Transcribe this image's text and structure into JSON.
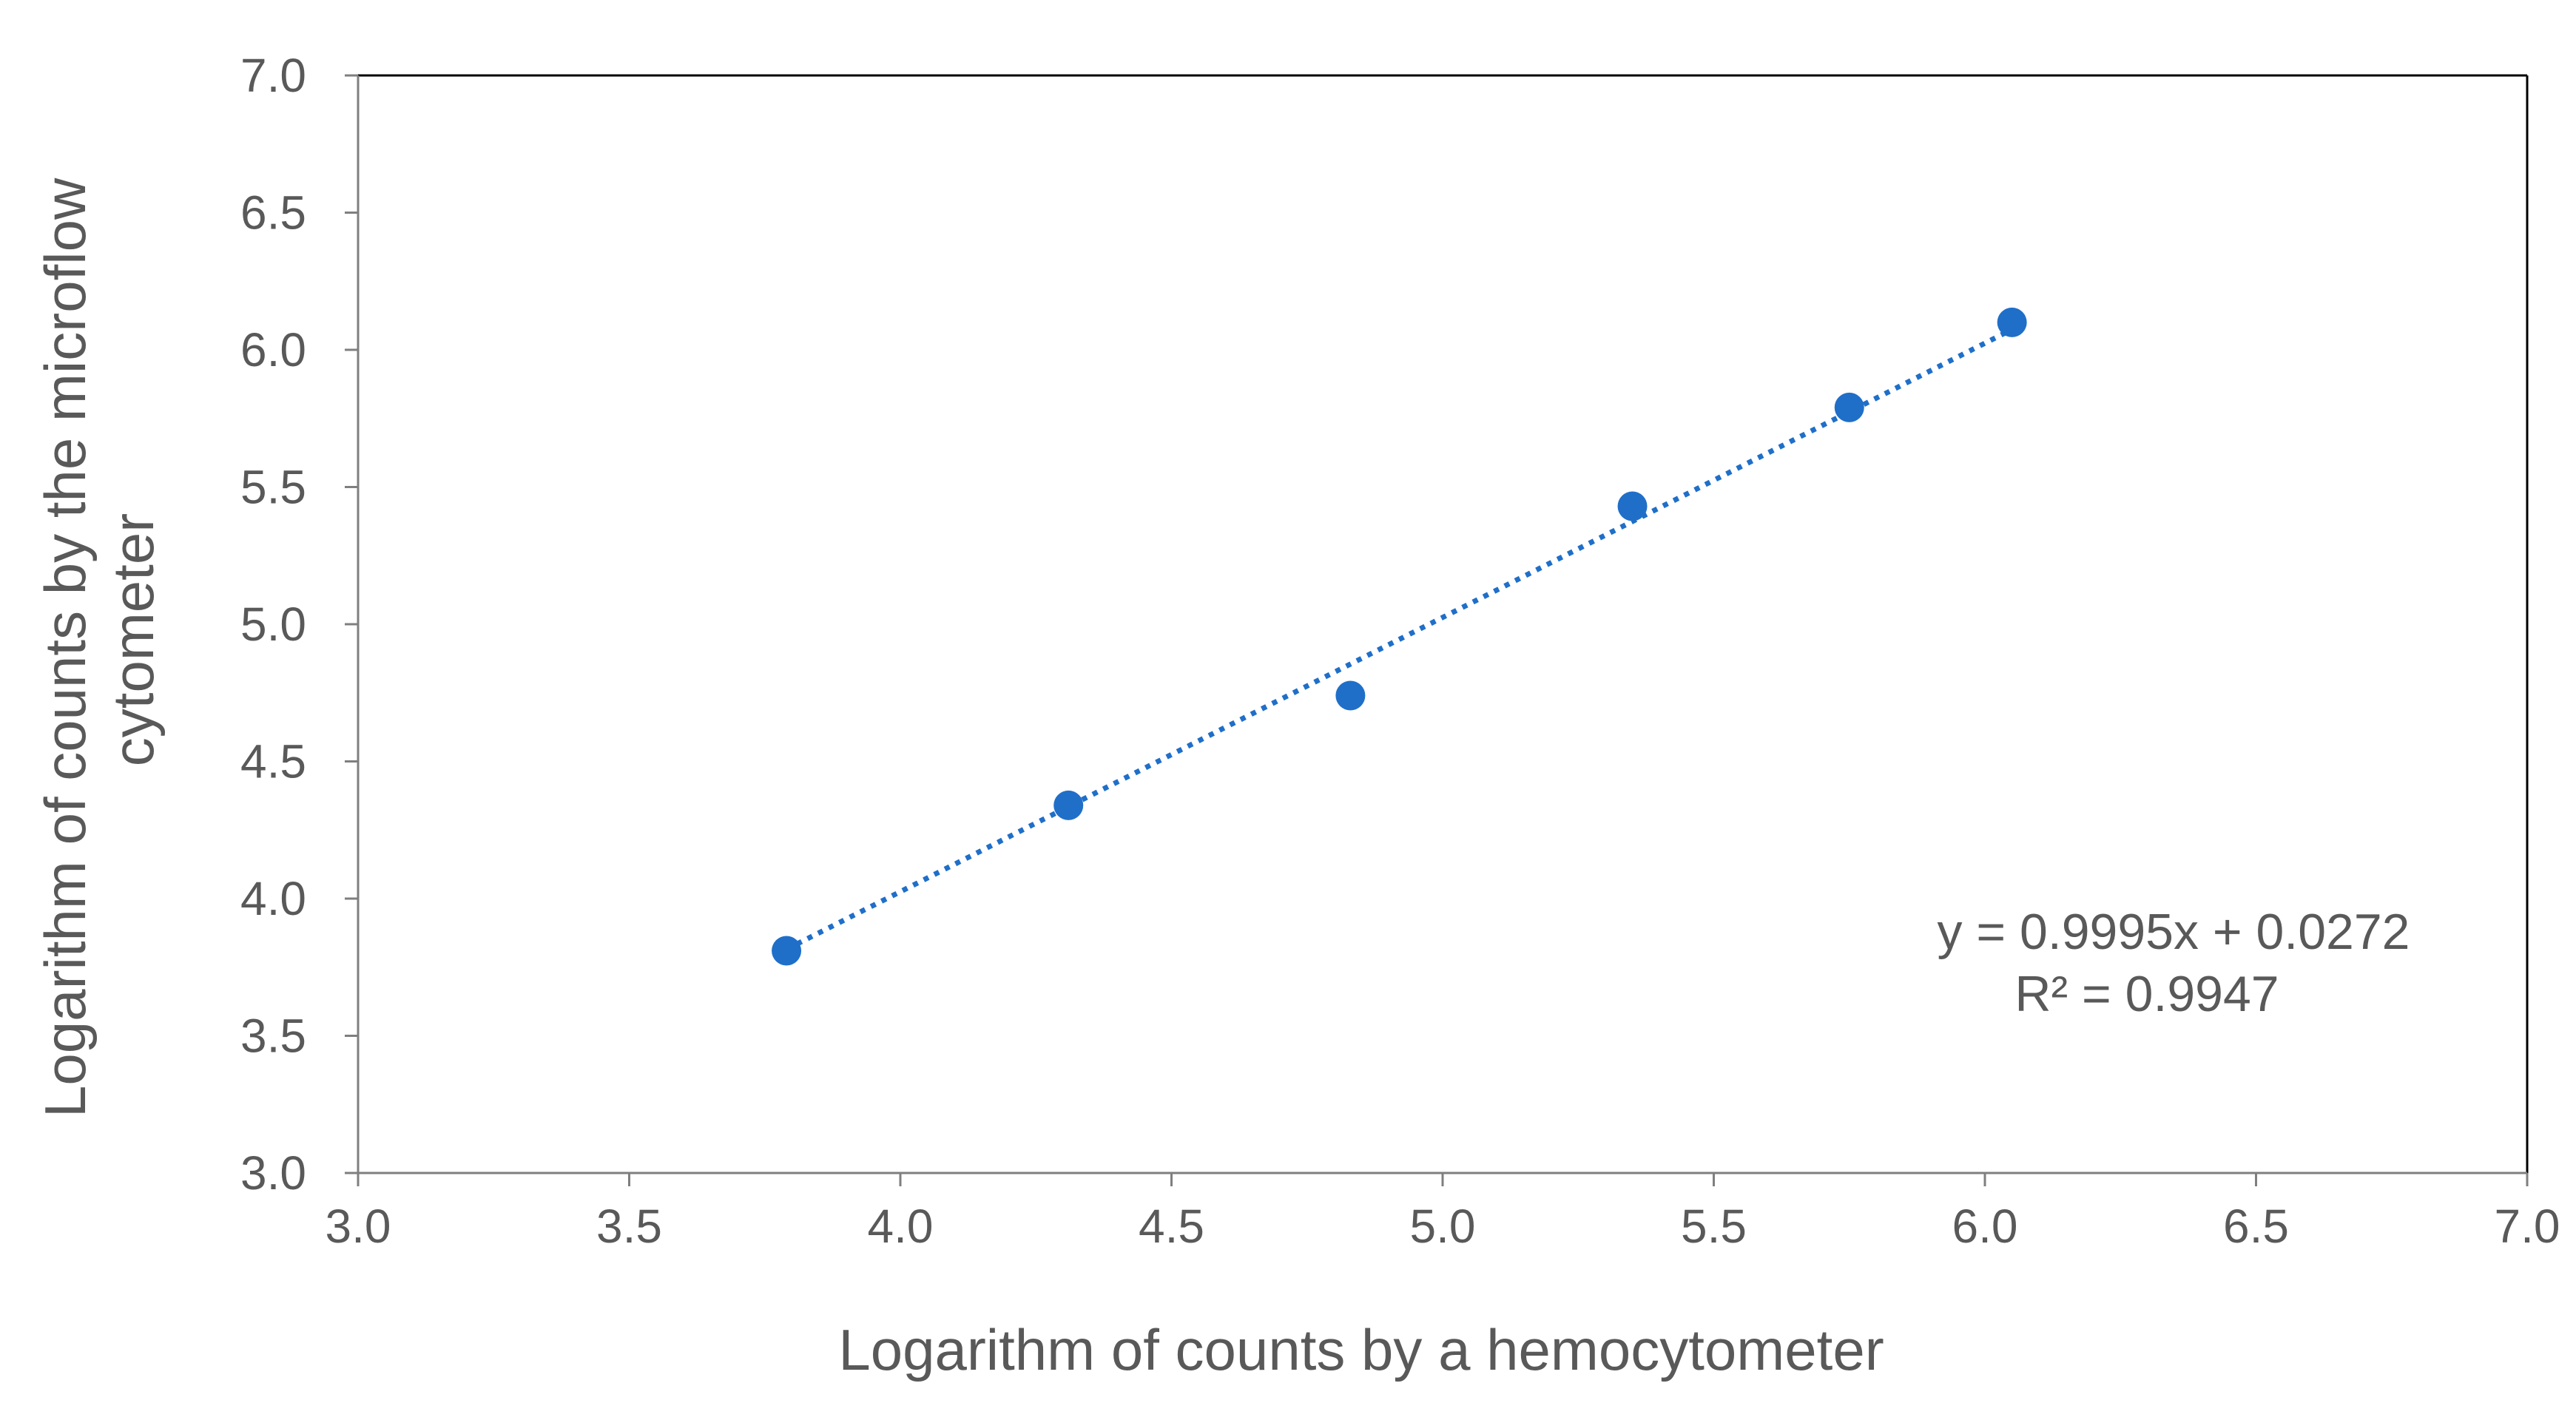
{
  "chart_data": {
    "type": "scatter",
    "title": "",
    "xlabel": "Logarithm of counts by a hemocytometer",
    "ylabel_lines": [
      "Logarithm of counts by the microflow",
      "cytometer"
    ],
    "xlim": [
      3.0,
      7.0
    ],
    "ylim": [
      3.0,
      7.0
    ],
    "x_ticks": [
      "3.0",
      "3.5",
      "4.0",
      "4.5",
      "5.0",
      "5.5",
      "6.0",
      "6.5",
      "7.0"
    ],
    "y_ticks": [
      "3.0",
      "3.5",
      "4.0",
      "4.5",
      "5.0",
      "5.5",
      "6.0",
      "6.5",
      "7.0"
    ],
    "grid": false,
    "legend": "none",
    "series": [
      {
        "x": [
          3.79,
          4.31,
          4.83,
          5.35,
          5.75,
          6.05
        ],
        "y": [
          3.81,
          4.34,
          4.74,
          5.43,
          5.79,
          6.1
        ]
      }
    ],
    "trendline": {
      "type": "linear",
      "style": "dotted",
      "slope": 0.9995,
      "intercept": 0.0272,
      "x_range": [
        3.79,
        6.05
      ]
    },
    "annotations": [
      "y = 0.9995x + 0.0272",
      "R² = 0.9947"
    ],
    "colors": {
      "marker": "#1f6fc9",
      "trendline": "#1f6fc9",
      "axis": "#7f7f7f",
      "frame": "#000000",
      "text": "#595959"
    }
  }
}
